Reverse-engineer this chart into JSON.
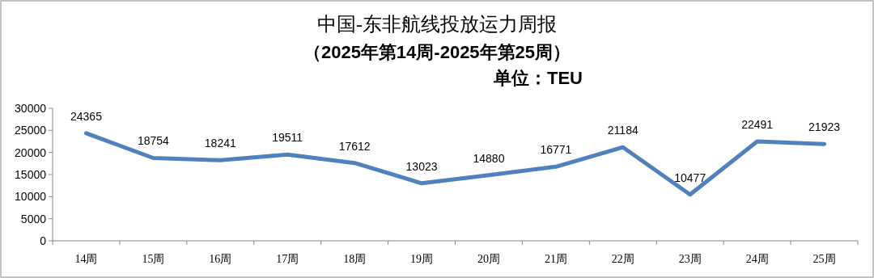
{
  "chart_data": {
    "type": "line",
    "title": "中国-东非航线投放运力周报",
    "subtitle": "（2025年第14周-2025年第25周）",
    "annotations": [
      "单位：TEU"
    ],
    "categories": [
      "14周",
      "15周",
      "16周",
      "17周",
      "18周",
      "19周",
      "20周",
      "21周",
      "22周",
      "23周",
      "24周",
      "25周"
    ],
    "series": [
      {
        "color": "#4f81bd",
        "values": [
          24365,
          18754,
          18241,
          19511,
          17612,
          13023,
          14880,
          16771,
          21184,
          10477,
          22491,
          21923
        ]
      }
    ],
    "ylim": [
      0,
      30000
    ],
    "yticks": [
      0,
      5000,
      10000,
      15000,
      20000,
      25000,
      30000
    ],
    "data_labels": true,
    "grid": false
  }
}
